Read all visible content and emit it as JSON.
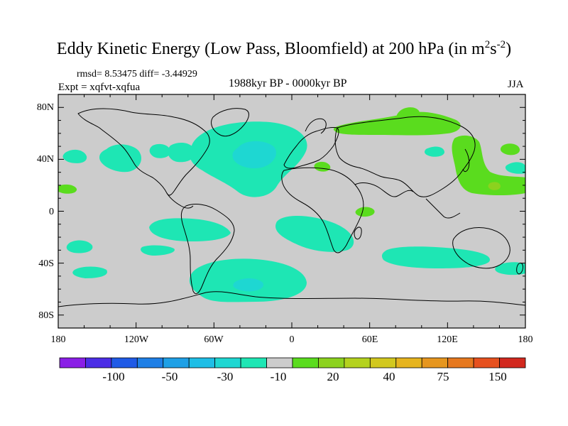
{
  "title": {
    "main": "Eddy Kinetic Energy (Low Pass, Bloomfield) at 200 hPa (in m",
    "sup1": "2",
    "mid": "s",
    "sup2": "-2",
    "close": ")"
  },
  "stats": "rmsd= 8.53475 diff= -3.44929",
  "experiment": "Expt = xqfvt-xqfua",
  "period": "1988kyr BP - 0000kyr BP",
  "season": "JJA",
  "axes": {
    "lat_labels": [
      "80N",
      "40N",
      "0",
      "40S",
      "80S"
    ],
    "lon_labels": [
      "180",
      "120W",
      "60W",
      "0",
      "60E",
      "120E",
      "180"
    ]
  },
  "colorbar": {
    "colors": [
      "#8a1ee6",
      "#4b2de6",
      "#1f5ae6",
      "#1e7fe6",
      "#1ea0e6",
      "#1ebee6",
      "#1ed7d2",
      "#1ee6b4",
      "#cccccc",
      "#5adc1e",
      "#8cd21e",
      "#b4d21e",
      "#d2c81e",
      "#e6b41e",
      "#e6961e",
      "#e6781e",
      "#e6501e",
      "#d2281e"
    ],
    "labels": [
      "-100",
      "-50",
      "-30",
      "-10",
      "20",
      "40",
      "75",
      "150"
    ]
  },
  "map": {
    "background": "#cccccc",
    "negative_color": "#1ee6b4",
    "negative_strong_color": "#1ed7d2",
    "positive_color": "#5adc1e",
    "positive_strong_color": "#8cd21e"
  }
}
